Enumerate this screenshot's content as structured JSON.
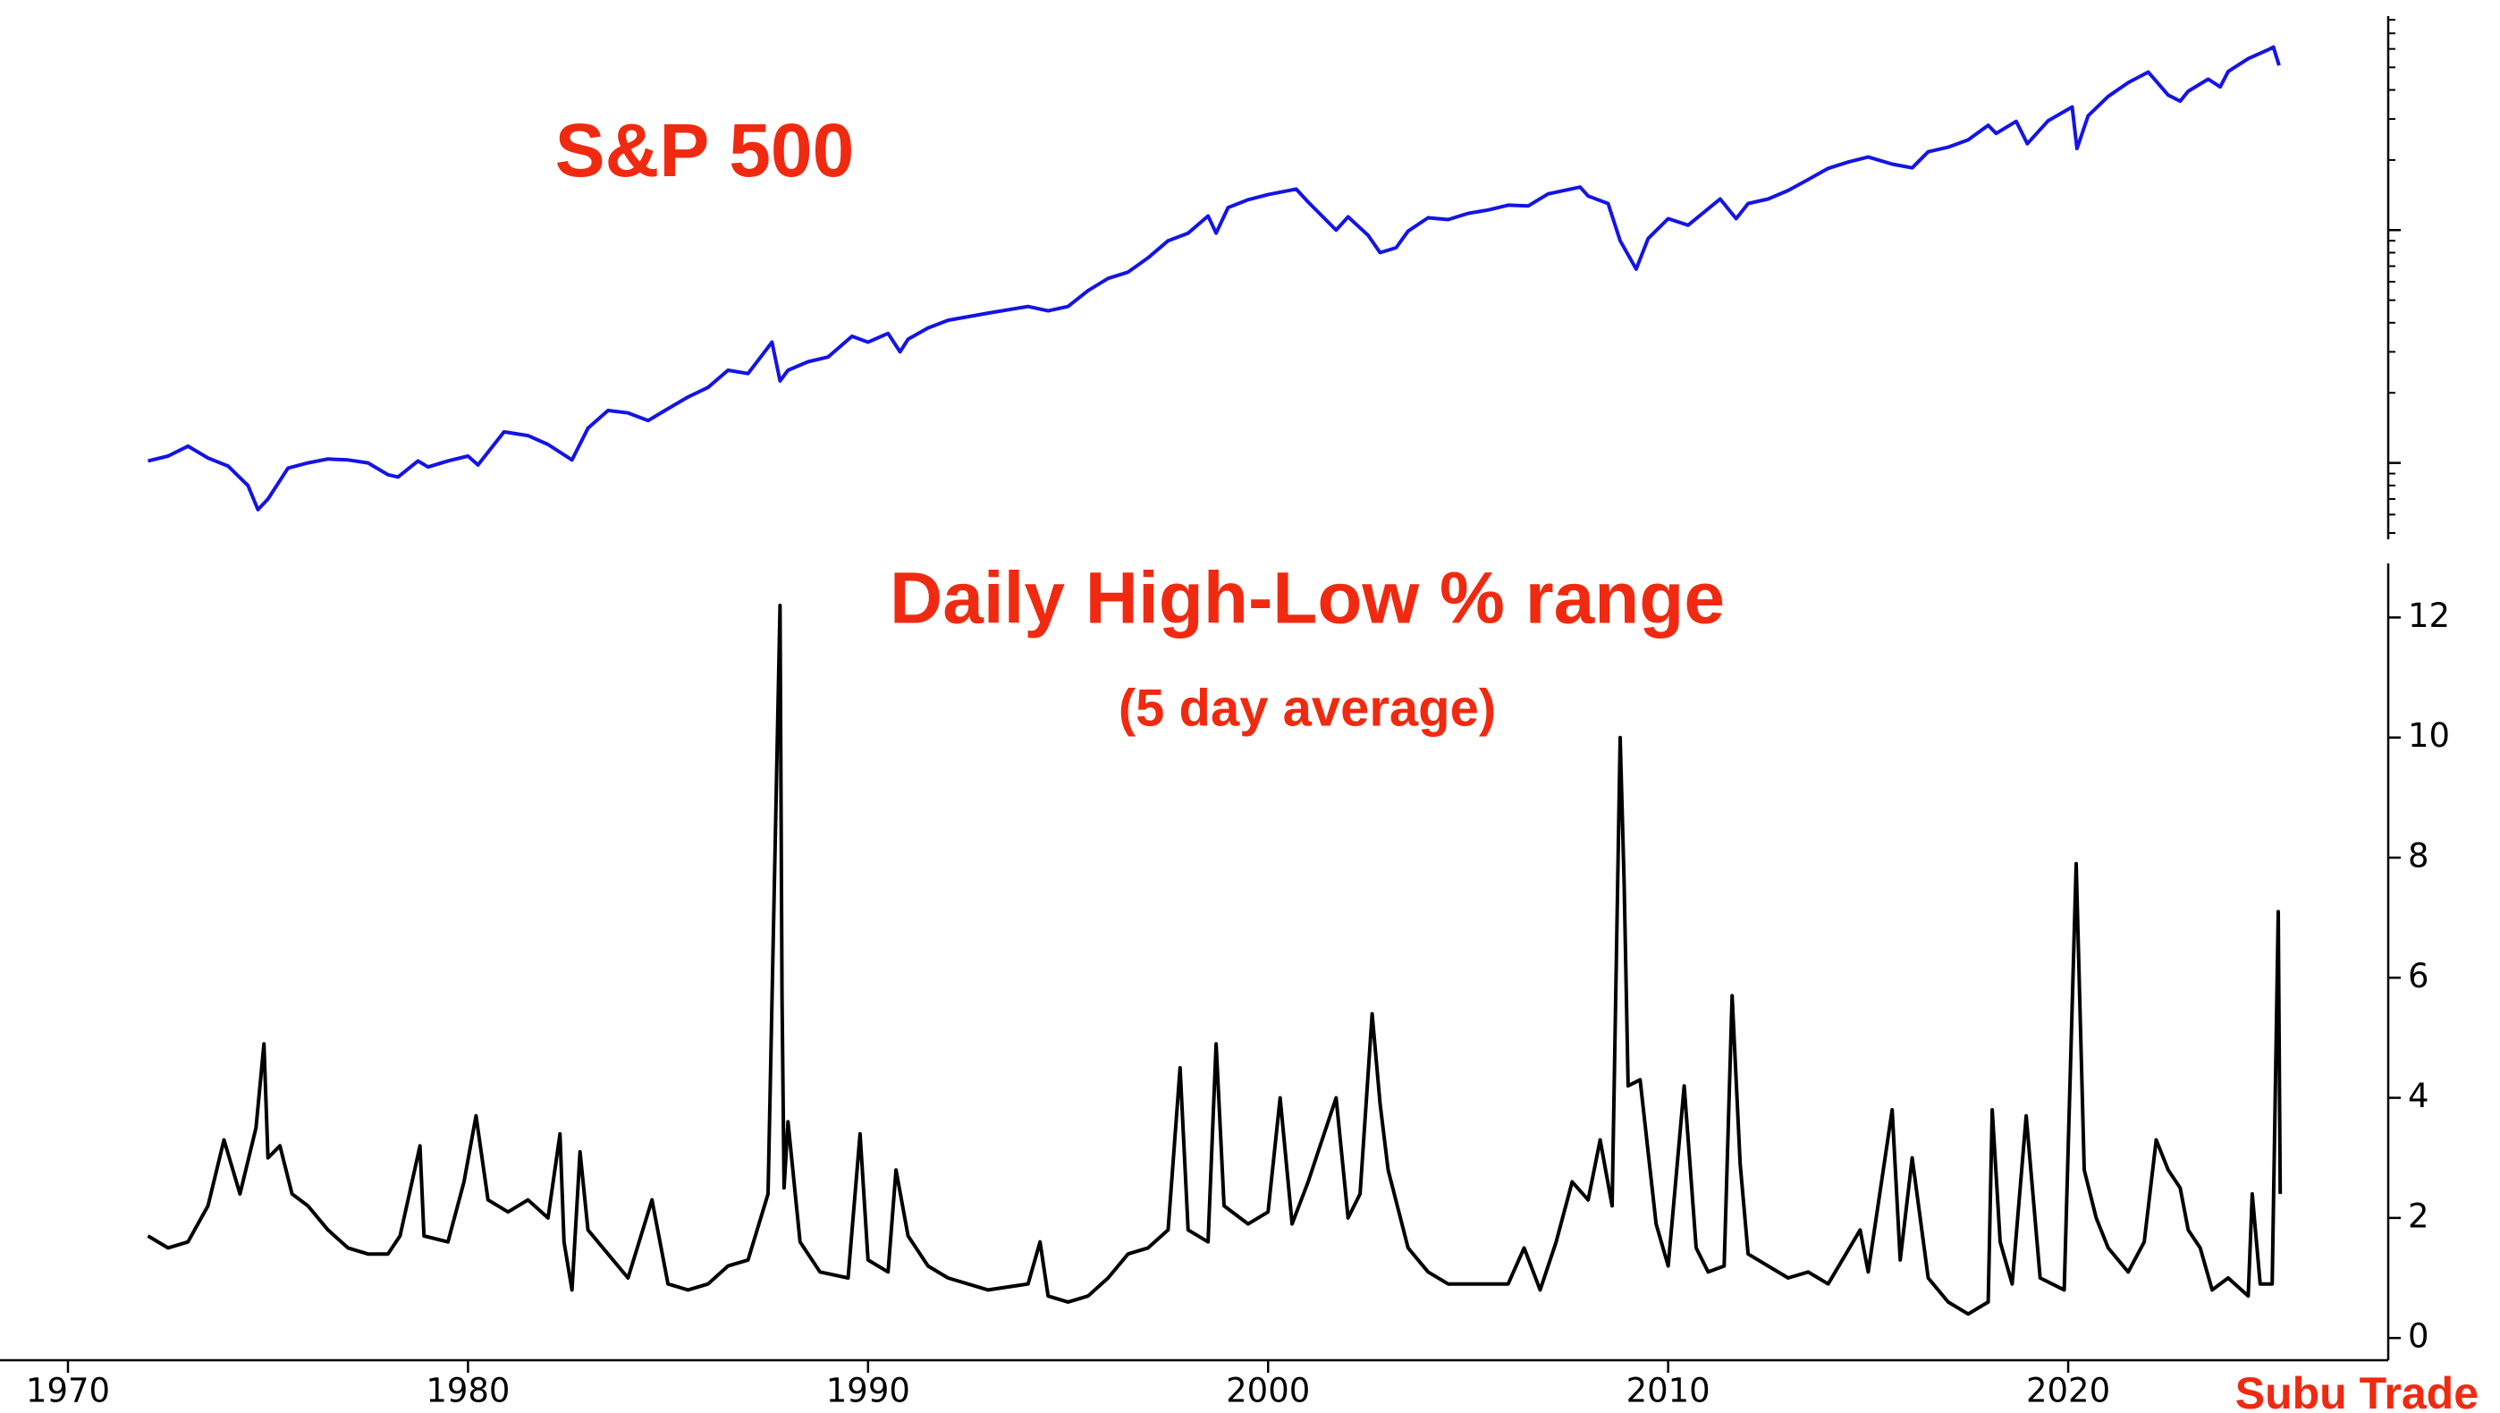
{
  "chart_data": [
    {
      "type": "line",
      "title": "S&P 500",
      "color": "#1414e6",
      "log_scale": true,
      "ytick_labels": false,
      "xlim": [
        1970,
        2028
      ],
      "ylim": [
        47,
        8300
      ],
      "yticks": [
        100,
        1000
      ],
      "x": [
        1972.0,
        1972.5,
        1973.0,
        1973.5,
        1974.0,
        1974.5,
        1974.75,
        1975.0,
        1975.5,
        1976.0,
        1976.5,
        1977.0,
        1977.5,
        1978.0,
        1978.25,
        1978.75,
        1979.0,
        1979.5,
        1980.0,
        1980.25,
        1980.9,
        1981.5,
        1982.0,
        1982.6,
        1983.0,
        1983.5,
        1984.0,
        1984.5,
        1985.0,
        1985.5,
        1986.0,
        1986.5,
        1987.0,
        1987.6,
        1987.8,
        1988.0,
        1988.5,
        1989.0,
        1989.6,
        1990.0,
        1990.5,
        1990.8,
        1991.0,
        1991.5,
        1992.0,
        1993.0,
        1994.0,
        1994.5,
        1995.0,
        1995.5,
        1996.0,
        1996.5,
        1997.0,
        1997.5,
        1998.0,
        1998.5,
        1998.7,
        1999.0,
        1999.5,
        2000.0,
        2000.7,
        2001.0,
        2001.7,
        2002.0,
        2002.5,
        2002.8,
        2003.2,
        2003.5,
        2004.0,
        2004.5,
        2005.0,
        2005.5,
        2006.0,
        2006.5,
        2007.0,
        2007.8,
        2008.0,
        2008.5,
        2008.8,
        2009.2,
        2009.5,
        2010.0,
        2010.5,
        2011.3,
        2011.7,
        2012.0,
        2012.5,
        2013.0,
        2013.5,
        2014.0,
        2014.5,
        2015.0,
        2015.6,
        2016.1,
        2016.5,
        2017.0,
        2017.5,
        2018.0,
        2018.2,
        2018.7,
        2018.98,
        2019.5,
        2020.1,
        2020.22,
        2020.5,
        2021.0,
        2021.5,
        2022.0,
        2022.5,
        2022.8,
        2023.0,
        2023.5,
        2023.8,
        2024.0,
        2024.5,
        2025.0,
        2025.13,
        2025.27
      ],
      "values": [
        102,
        107,
        118,
        105,
        97,
        80,
        63,
        70,
        95,
        100,
        104,
        103,
        100,
        89,
        87,
        102,
        96,
        102,
        107,
        98,
        136,
        131,
        120,
        103,
        141,
        168,
        164,
        152,
        171,
        192,
        211,
        250,
        242,
        330,
        225,
        250,
        272,
        285,
        350,
        330,
        360,
        300,
        340,
        380,
        410,
        440,
        470,
        450,
        470,
        550,
        620,
        660,
        760,
        900,
        970,
        1150,
        970,
        1250,
        1350,
        1420,
        1500,
        1320,
        1000,
        1140,
        950,
        800,
        840,
        990,
        1130,
        1110,
        1180,
        1220,
        1280,
        1270,
        1430,
        1530,
        1400,
        1300,
        900,
        680,
        920,
        1120,
        1050,
        1360,
        1120,
        1300,
        1360,
        1480,
        1650,
        1840,
        1960,
        2060,
        1920,
        1850,
        2170,
        2270,
        2440,
        2820,
        2600,
        2930,
        2350,
        2950,
        3380,
        2240,
        3100,
        3750,
        4300,
        4770,
        3800,
        3580,
        3950,
        4450,
        4120,
        4800,
        5450,
        5950,
        6110,
        5100
      ]
    },
    {
      "type": "line",
      "title": "Daily High-Low % range",
      "subtitle": "(5 day average)",
      "color": "#000000",
      "note": "Subu Trade",
      "xlim": [
        1970,
        2028
      ],
      "xticks": [
        1970,
        1980,
        1990,
        2000,
        2010,
        2020
      ],
      "ylim": [
        -0.37,
        12.9
      ],
      "yticks": [
        0,
        2,
        4,
        6,
        8,
        10,
        12
      ],
      "x": [
        1972.0,
        1972.5,
        1973.0,
        1973.5,
        1973.9,
        1974.3,
        1974.7,
        1974.9,
        1975.0,
        1975.3,
        1975.6,
        1976.0,
        1976.5,
        1977.0,
        1977.5,
        1978.0,
        1978.3,
        1978.8,
        1978.9,
        1979.5,
        1979.9,
        1980.2,
        1980.5,
        1981.0,
        1981.5,
        1982.0,
        1982.3,
        1982.4,
        1982.6,
        1982.8,
        1983.0,
        1983.5,
        1984.0,
        1984.6,
        1985.0,
        1985.5,
        1986.0,
        1986.5,
        1987.0,
        1987.5,
        1987.8,
        1987.85,
        1987.9,
        1988.0,
        1988.3,
        1988.8,
        1989.5,
        1989.8,
        1990.0,
        1990.5,
        1990.7,
        1991.0,
        1991.5,
        1992.0,
        1993.0,
        1994.0,
        1994.3,
        1994.5,
        1995.0,
        1995.5,
        1996.0,
        1996.5,
        1997.0,
        1997.5,
        1997.8,
        1998.0,
        1998.5,
        1998.7,
        1998.9,
        1999.5,
        2000.0,
        2000.3,
        2000.6,
        2001.0,
        2001.3,
        2001.7,
        2002.0,
        2002.3,
        2002.6,
        2002.8,
        2003.0,
        2003.5,
        2004.0,
        2004.5,
        2005.0,
        2006.0,
        2006.4,
        2006.8,
        2007.2,
        2007.6,
        2008.0,
        2008.3,
        2008.6,
        2008.8,
        2008.9,
        2009.0,
        2009.3,
        2009.7,
        2010.0,
        2010.4,
        2010.7,
        2011.0,
        2011.4,
        2011.6,
        2011.8,
        2012.0,
        2012.5,
        2013.0,
        2013.5,
        2014.0,
        2014.8,
        2015.0,
        2015.6,
        2015.8,
        2016.1,
        2016.5,
        2017.0,
        2017.5,
        2018.0,
        2018.1,
        2018.3,
        2018.6,
        2018.95,
        2019.3,
        2019.9,
        2020.2,
        2020.4,
        2020.7,
        2021.0,
        2021.5,
        2021.9,
        2022.2,
        2022.5,
        2022.8,
        2023.0,
        2023.3,
        2023.6,
        2024.0,
        2024.5,
        2024.6,
        2024.8,
        2025.1,
        2025.25,
        2025.3
      ],
      "values": [
        1.7,
        1.5,
        1.6,
        2.2,
        3.3,
        2.4,
        3.5,
        4.9,
        3.0,
        3.2,
        2.4,
        2.2,
        1.8,
        1.5,
        1.4,
        1.4,
        1.7,
        3.2,
        1.7,
        1.6,
        2.6,
        3.7,
        2.3,
        2.1,
        2.3,
        2.0,
        3.4,
        1.6,
        0.8,
        3.1,
        1.8,
        1.4,
        1.0,
        2.3,
        0.9,
        0.8,
        0.9,
        1.2,
        1.3,
        2.4,
        12.2,
        5.7,
        2.5,
        3.6,
        1.6,
        1.1,
        1.0,
        3.4,
        1.3,
        1.1,
        2.8,
        1.7,
        1.2,
        1.0,
        0.8,
        0.9,
        1.6,
        0.7,
        0.6,
        0.7,
        1.0,
        1.4,
        1.5,
        1.8,
        4.5,
        1.8,
        1.6,
        4.9,
        2.2,
        1.9,
        2.1,
        4.0,
        1.9,
        2.6,
        3.2,
        4.0,
        2.0,
        2.4,
        5.4,
        3.9,
        2.8,
        1.5,
        1.1,
        0.9,
        0.9,
        0.9,
        1.5,
        0.8,
        1.6,
        2.6,
        2.3,
        3.3,
        2.2,
        10.0,
        7.6,
        4.2,
        4.3,
        1.9,
        1.2,
        4.2,
        1.5,
        1.1,
        1.2,
        5.7,
        2.9,
        1.4,
        1.2,
        1.0,
        1.1,
        0.9,
        1.8,
        1.1,
        3.8,
        1.3,
        3.0,
        1.0,
        0.6,
        0.4,
        0.6,
        3.8,
        1.6,
        0.9,
        3.7,
        1.0,
        0.8,
        7.9,
        2.8,
        2.0,
        1.5,
        1.1,
        1.6,
        3.3,
        2.8,
        2.5,
        1.8,
        1.5,
        0.8,
        1.0,
        0.7,
        2.4,
        0.9,
        0.9,
        7.1,
        2.4
      ]
    }
  ]
}
